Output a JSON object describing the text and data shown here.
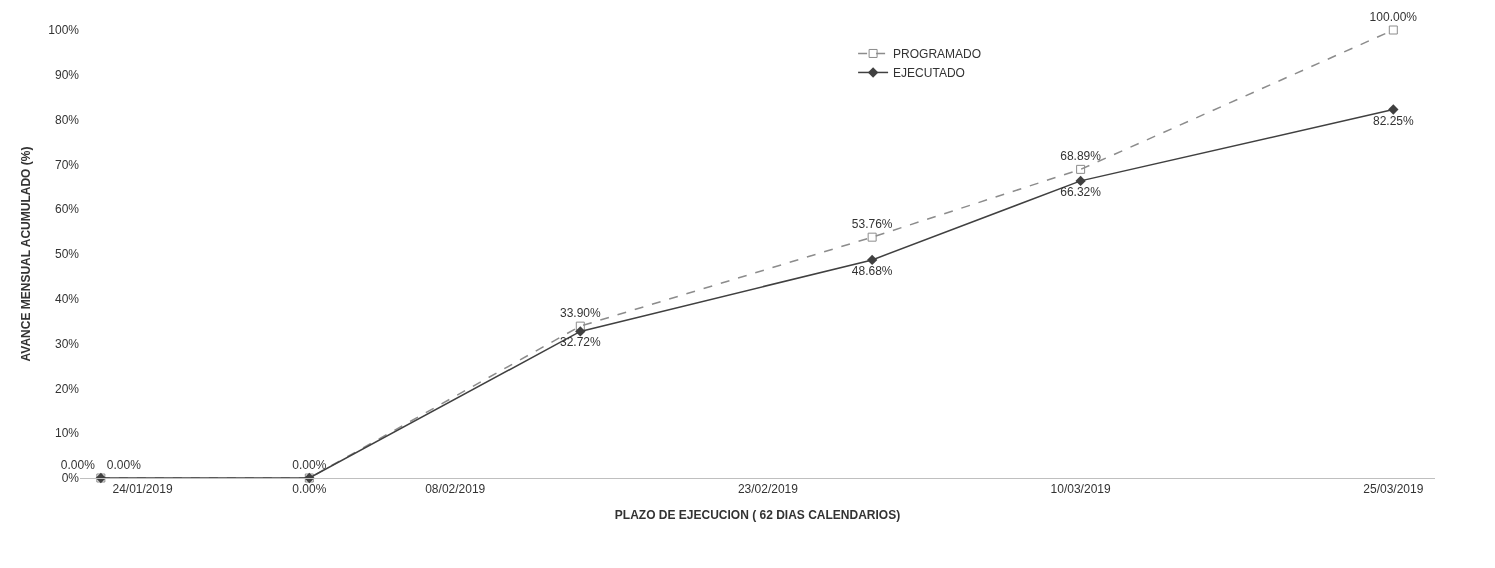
{
  "chart_data": {
    "type": "line",
    "xlabel": "PLAZO DE EJECUCION ( 62 DIAS CALENDARIOS)",
    "ylabel": "AVANCE MENSUAL ACUMULADO (%)",
    "x": [
      "2019-01-22",
      "2019-02-01",
      "2019-02-14",
      "2019-02-28",
      "2019-03-10",
      "2019-03-25"
    ],
    "series": [
      {
        "name": "PROGRAMADO",
        "color": "#8c8c8c",
        "values": [
          0,
          0,
          33.9,
          53.76,
          68.89,
          100.0
        ],
        "value_labels": [
          "0.00%",
          "0.00%",
          "33.90%",
          "53.76%",
          "68.89%",
          "100.00%"
        ],
        "marker": "square",
        "line_style": "dashed"
      },
      {
        "name": "EJECUTADO",
        "color": "#404040",
        "values": [
          0,
          0,
          32.72,
          48.68,
          66.32,
          82.25
        ],
        "value_labels": [
          "0.00%",
          "0.00%",
          "32.72%",
          "48.68%",
          "66.32%",
          "82.25%"
        ],
        "marker": "diamond",
        "line_style": "solid"
      }
    ],
    "xlim": [
      "2019-01-21",
      "2019-03-27"
    ],
    "xticks": [
      {
        "value": "2019-01-24",
        "label": "24/01/2019"
      },
      {
        "value": "2019-02-08",
        "label": "08/02/2019"
      },
      {
        "value": "2019-02-23",
        "label": "23/02/2019"
      },
      {
        "value": "2019-03-10",
        "label": "10/03/2019"
      },
      {
        "value": "2019-03-25",
        "label": "25/03/2019"
      }
    ],
    "ylim": [
      0,
      100
    ],
    "yticks": [
      {
        "value": 0,
        "label": "0%"
      },
      {
        "value": 10,
        "label": "10%"
      },
      {
        "value": 20,
        "label": "20%"
      },
      {
        "value": 30,
        "label": "30%"
      },
      {
        "value": 40,
        "label": "40%"
      },
      {
        "value": 50,
        "label": "50%"
      },
      {
        "value": 60,
        "label": "60%"
      },
      {
        "value": 70,
        "label": "70%"
      },
      {
        "value": 80,
        "label": "80%"
      },
      {
        "value": 90,
        "label": "90%"
      },
      {
        "value": 100,
        "label": "100%"
      }
    ],
    "legend": "top"
  }
}
